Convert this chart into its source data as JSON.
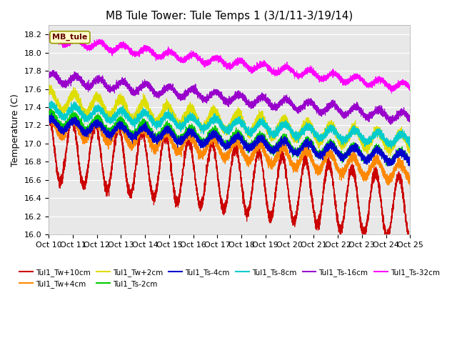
{
  "title": "MB Tule Tower: Tule Temps 1 (3/1/11-3/19/14)",
  "ylabel": "Temperature (C)",
  "ylim": [
    16.0,
    18.3
  ],
  "xlim": [
    0,
    240
  ],
  "bg_color": "#e8e8e8",
  "xtick_labels": [
    "Oct 10",
    "Oct 11",
    "Oct 12",
    "Oct 13",
    "Oct 14",
    "Oct 15",
    "Oct 16",
    "Oct 17",
    "Oct 18",
    "Oct 19",
    "Oct 20",
    "Oct 21",
    "Oct 22",
    "Oct 23",
    "Oct 24",
    "Oct 25"
  ],
  "ytick_labels": [
    "16.0",
    "16.2",
    "16.4",
    "16.6",
    "16.8",
    "17.0",
    "17.2",
    "17.4",
    "17.6",
    "17.8",
    "18.0",
    "18.2"
  ],
  "ytick_vals": [
    16.0,
    16.2,
    16.4,
    16.6,
    16.8,
    17.0,
    17.2,
    17.4,
    17.6,
    17.8,
    18.0,
    18.2
  ],
  "series": [
    {
      "label": "Tul1_Tw+10cm",
      "color": "#cc0000",
      "base": 16.95,
      "amplitude": 0.35,
      "trend": -0.0028,
      "period": 15.5,
      "phase": 1.57,
      "noise": 0.03
    },
    {
      "label": "Tul1_Tw+4cm",
      "color": "#ff8800",
      "base": 17.2,
      "amplitude": 0.1,
      "trend": -0.0022,
      "period": 15.5,
      "phase": 1.3,
      "noise": 0.025
    },
    {
      "label": "Tul1_Tw+2cm",
      "color": "#dddd00",
      "base": 17.48,
      "amplitude": 0.1,
      "trend": -0.002,
      "period": 15.5,
      "phase": 1.0,
      "noise": 0.025
    },
    {
      "label": "Tul1_Ts-2cm",
      "color": "#00cc00",
      "base": 17.27,
      "amplitude": 0.07,
      "trend": -0.0018,
      "period": 15.5,
      "phase": 1.0,
      "noise": 0.02
    },
    {
      "label": "Tul1_Ts-4cm",
      "color": "#0000cc",
      "base": 17.22,
      "amplitude": 0.06,
      "trend": -0.0016,
      "period": 15.5,
      "phase": 1.0,
      "noise": 0.02
    },
    {
      "label": "Tul1_Ts-8cm",
      "color": "#00cccc",
      "base": 17.37,
      "amplitude": 0.06,
      "trend": -0.0014,
      "period": 15.5,
      "phase": 0.8,
      "noise": 0.02
    },
    {
      "label": "Tul1_Ts-16cm",
      "color": "#9900cc",
      "base": 17.72,
      "amplitude": 0.05,
      "trend": -0.0018,
      "period": 15.5,
      "phase": 0.5,
      "noise": 0.018
    },
    {
      "label": "Tul1_Ts-32cm",
      "color": "#ff00ff",
      "base": 18.15,
      "amplitude": 0.04,
      "trend": -0.0022,
      "period": 15.5,
      "phase": 0.3,
      "noise": 0.015
    }
  ],
  "annotation_label": "MB_tule",
  "title_fontsize": 11,
  "label_fontsize": 9,
  "tick_fontsize": 8
}
